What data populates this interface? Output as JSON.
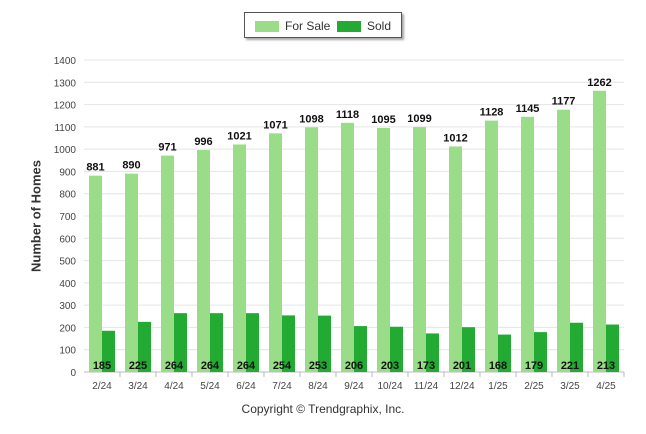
{
  "chart_data": {
    "type": "bar",
    "categories": [
      "2/24",
      "3/24",
      "4/24",
      "5/24",
      "6/24",
      "7/24",
      "8/24",
      "9/24",
      "10/24",
      "11/24",
      "12/24",
      "1/25",
      "2/25",
      "3/25",
      "4/25"
    ],
    "series": [
      {
        "name": "For Sale",
        "color": "#99dd88",
        "values": [
          881,
          890,
          971,
          996,
          1021,
          1071,
          1098,
          1118,
          1095,
          1099,
          1012,
          1128,
          1145,
          1177,
          1262
        ]
      },
      {
        "name": "Sold",
        "color": "#22aa33",
        "values": [
          185,
          225,
          264,
          264,
          264,
          254,
          253,
          206,
          203,
          173,
          201,
          168,
          179,
          221,
          213
        ]
      }
    ],
    "ylabel": "Number of Homes",
    "yticks": [
      "0",
      "100",
      "200",
      "300",
      "400",
      "500",
      "600",
      "700",
      "800",
      "900",
      "1000",
      "1100",
      "1200",
      "1300",
      "1400"
    ],
    "ylim": [
      0,
      1400
    ],
    "grid": true,
    "legend_position": "top-center"
  },
  "legend": {
    "for_sale": "For Sale",
    "sold": "Sold"
  },
  "footer": {
    "copyright": "Copyright © Trendgraphix, Inc."
  }
}
